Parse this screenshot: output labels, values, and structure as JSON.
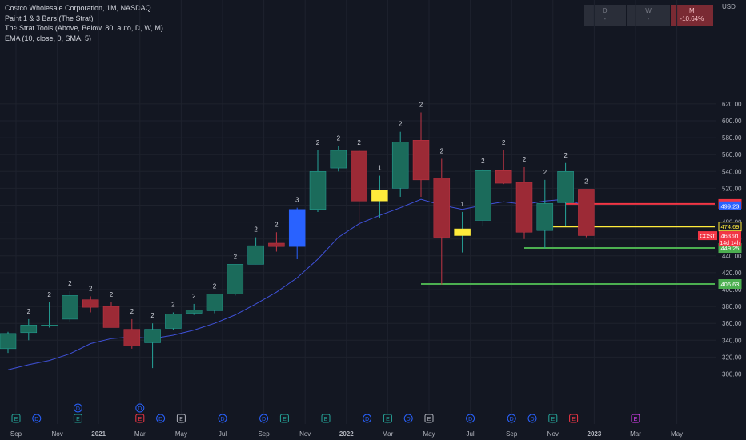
{
  "legend": {
    "title": "Costco Wholesale Corporation, 1M, NASDAQ",
    "indicator1": "Paint 1 & 3 Bars (The Strat)",
    "indicator2": "The Strat Tools (Above, Below, 80, auto, D, W, M)",
    "indicator3": "EMA (10, close, 0, SMA, 5)"
  },
  "timeframes": [
    {
      "label": "D",
      "value": "-"
    },
    {
      "label": "W",
      "value": "-"
    },
    {
      "label": "M",
      "value": "-10.64%"
    }
  ],
  "currency": "USD",
  "chart_data": {
    "type": "candlestick",
    "title": "Costco Wholesale Corporation, 1M, NASDAQ",
    "ylim": [
      295,
      635
    ],
    "y_ticks": [
      300,
      320,
      340,
      360,
      380,
      400,
      420,
      440,
      460,
      480,
      500,
      520,
      540,
      560,
      580,
      600,
      620
    ],
    "y_tick_labels": [
      "300.00",
      "320.00",
      "340.00",
      "360.00",
      "380.00",
      "400.00",
      "420.00",
      "440.00",
      "460.00",
      "480.00",
      "500.00",
      "520.00",
      "540.00",
      "560.00",
      "580.00",
      "600.00",
      "620.00"
    ],
    "x_tick_labels": [
      {
        "label": "Sep",
        "index": 0
      },
      {
        "label": "Nov",
        "index": 2
      },
      {
        "label": "2021",
        "index": 4
      },
      {
        "label": "Mar",
        "index": 6
      },
      {
        "label": "May",
        "index": 8
      },
      {
        "label": "Jul",
        "index": 10
      },
      {
        "label": "Sep",
        "index": 12
      },
      {
        "label": "Nov",
        "index": 14
      },
      {
        "label": "2022",
        "index": 16
      },
      {
        "label": "Mar",
        "index": 18
      },
      {
        "label": "May",
        "index": 20
      },
      {
        "label": "Jul",
        "index": 22
      },
      {
        "label": "Sep",
        "index": 24
      },
      {
        "label": "Nov",
        "index": 26
      },
      {
        "label": "2023",
        "index": 28
      },
      {
        "label": "Mar",
        "index": 30
      },
      {
        "label": "May",
        "index": 32
      }
    ],
    "candles": [
      {
        "o": 330,
        "h": 350,
        "l": 325,
        "c": 348,
        "strat": "",
        "color": "green"
      },
      {
        "o": 349,
        "h": 365,
        "l": 340,
        "c": 358,
        "strat": "2",
        "color": "green"
      },
      {
        "o": 357,
        "h": 385,
        "l": 355,
        "c": 358,
        "strat": "2",
        "color": "green"
      },
      {
        "o": 365,
        "h": 398,
        "l": 362,
        "c": 393,
        "strat": "2",
        "color": "green"
      },
      {
        "o": 388,
        "h": 392,
        "l": 373,
        "c": 379,
        "strat": "2",
        "color": "red"
      },
      {
        "o": 380,
        "h": 385,
        "l": 355,
        "c": 355,
        "strat": "2",
        "color": "red"
      },
      {
        "o": 353,
        "h": 365,
        "l": 330,
        "c": 333,
        "strat": "2",
        "color": "red"
      },
      {
        "o": 337,
        "h": 360,
        "l": 307,
        "c": 353,
        "strat": "2",
        "color": "green"
      },
      {
        "o": 354,
        "h": 373,
        "l": 352,
        "c": 371,
        "strat": "2",
        "color": "green"
      },
      {
        "o": 372,
        "h": 383,
        "l": 370,
        "c": 376,
        "strat": "2",
        "color": "green"
      },
      {
        "o": 375,
        "h": 395,
        "l": 372,
        "c": 395,
        "strat": "2",
        "color": "green"
      },
      {
        "o": 395,
        "h": 430,
        "l": 393,
        "c": 430,
        "strat": "2",
        "color": "green"
      },
      {
        "o": 430,
        "h": 462,
        "l": 430,
        "c": 452,
        "strat": "2",
        "color": "green"
      },
      {
        "o": 455,
        "h": 468,
        "l": 445,
        "c": 451,
        "strat": "2",
        "color": "red"
      },
      {
        "o": 451,
        "h": 497,
        "l": 436,
        "c": 495,
        "strat": "3",
        "color": "blue"
      },
      {
        "o": 495,
        "h": 565,
        "l": 492,
        "c": 540,
        "strat": "2",
        "color": "green"
      },
      {
        "o": 544,
        "h": 570,
        "l": 540,
        "c": 565,
        "strat": "2",
        "color": "green"
      },
      {
        "o": 564,
        "h": 565,
        "l": 473,
        "c": 505,
        "strat": "2",
        "color": "red"
      },
      {
        "o": 505,
        "h": 535,
        "l": 485,
        "c": 518,
        "strat": "1",
        "color": "yellow"
      },
      {
        "o": 520,
        "h": 587,
        "l": 510,
        "c": 575,
        "strat": "2",
        "color": "green"
      },
      {
        "o": 577,
        "h": 610,
        "l": 510,
        "c": 530,
        "strat": "2",
        "color": "red"
      },
      {
        "o": 532,
        "h": 555,
        "l": 406,
        "c": 462,
        "strat": "2",
        "color": "red"
      },
      {
        "o": 472,
        "h": 492,
        "l": 444,
        "c": 464,
        "strat": "1",
        "color": "yellow"
      },
      {
        "o": 482,
        "h": 543,
        "l": 475,
        "c": 541,
        "strat": "2",
        "color": "green"
      },
      {
        "o": 541,
        "h": 565,
        "l": 525,
        "c": 526,
        "strat": "2",
        "color": "red"
      },
      {
        "o": 527,
        "h": 545,
        "l": 460,
        "c": 468,
        "strat": "2",
        "color": "red"
      },
      {
        "o": 470,
        "h": 530,
        "l": 449,
        "c": 502,
        "strat": "2",
        "color": "green"
      },
      {
        "o": 503,
        "h": 550,
        "l": 475,
        "c": 540,
        "strat": "2",
        "color": "green"
      },
      {
        "o": 519,
        "h": 519,
        "l": 462,
        "c": 464,
        "strat": "2",
        "color": "red"
      }
    ],
    "ema": [
      305,
      311,
      316,
      324,
      336,
      342,
      344,
      342,
      346,
      352,
      360,
      370,
      383,
      397,
      414,
      436,
      462,
      478,
      488,
      497,
      507,
      500,
      495,
      500,
      504,
      501,
      505,
      507,
      499
    ]
  },
  "levels": [
    {
      "value": 501.51,
      "label": "501.51",
      "color": "#f23645",
      "start": 27
    },
    {
      "value": 474.69,
      "label": "474.69",
      "color": "#ffeb3b",
      "start": 26
    },
    {
      "value": 449.25,
      "label": "449.25",
      "color": "#4caf50",
      "start": 25
    },
    {
      "value": 406.63,
      "label": "406.63",
      "color": "#4caf50",
      "start": 20
    }
  ],
  "price_tags": [
    {
      "value": 499.23,
      "label": "499.23",
      "color": "#2962ff",
      "text_color": "#ffffff"
    },
    {
      "value": 463.91,
      "label": "463.91",
      "color": "#f23645",
      "text_color": "#ffffff",
      "symbol": "COST",
      "countdown": "14d 14h"
    }
  ],
  "events": [
    {
      "index": 0,
      "letter": "E",
      "kind": "earnings"
    },
    {
      "index": 1,
      "letter": "D",
      "kind": "dividend"
    },
    {
      "index": 3,
      "letter": "D",
      "kind": "dividend"
    },
    {
      "index": 3,
      "letter": "E",
      "kind": "earnings"
    },
    {
      "index": 6,
      "letter": "D",
      "kind": "dividend"
    },
    {
      "index": 6,
      "letter": "E",
      "kind": "earnings-red"
    },
    {
      "index": 7,
      "letter": "D",
      "kind": "dividend"
    },
    {
      "index": 8,
      "letter": "E",
      "kind": "earnings-white"
    },
    {
      "index": 10,
      "letter": "D",
      "kind": "dividend"
    },
    {
      "index": 12,
      "letter": "D",
      "kind": "dividend"
    },
    {
      "index": 13,
      "letter": "E",
      "kind": "earnings"
    },
    {
      "index": 15,
      "letter": "E",
      "kind": "earnings"
    },
    {
      "index": 17,
      "letter": "D",
      "kind": "dividend"
    },
    {
      "index": 18,
      "letter": "E",
      "kind": "earnings"
    },
    {
      "index": 19,
      "letter": "D",
      "kind": "dividend"
    },
    {
      "index": 20,
      "letter": "E",
      "kind": "earnings-white"
    },
    {
      "index": 22,
      "letter": "D",
      "kind": "dividend"
    },
    {
      "index": 24,
      "letter": "D",
      "kind": "dividend"
    },
    {
      "index": 25,
      "letter": "D",
      "kind": "dividend"
    },
    {
      "index": 26,
      "letter": "E",
      "kind": "earnings"
    },
    {
      "index": 27,
      "letter": "E",
      "kind": "earnings-red"
    },
    {
      "index": 30,
      "letter": "E",
      "kind": "earnings-purple"
    }
  ],
  "colors": {
    "background": "#131722",
    "grid": "#1e222d",
    "green": "#1b6b5b",
    "green_border": "#26a69a",
    "red": "#9c2a36",
    "red_border": "#c23645",
    "blue": "#2962ff",
    "yellow": "#ffeb3b",
    "ema": "#3f51d8",
    "axis_text": "#b2b5be"
  }
}
